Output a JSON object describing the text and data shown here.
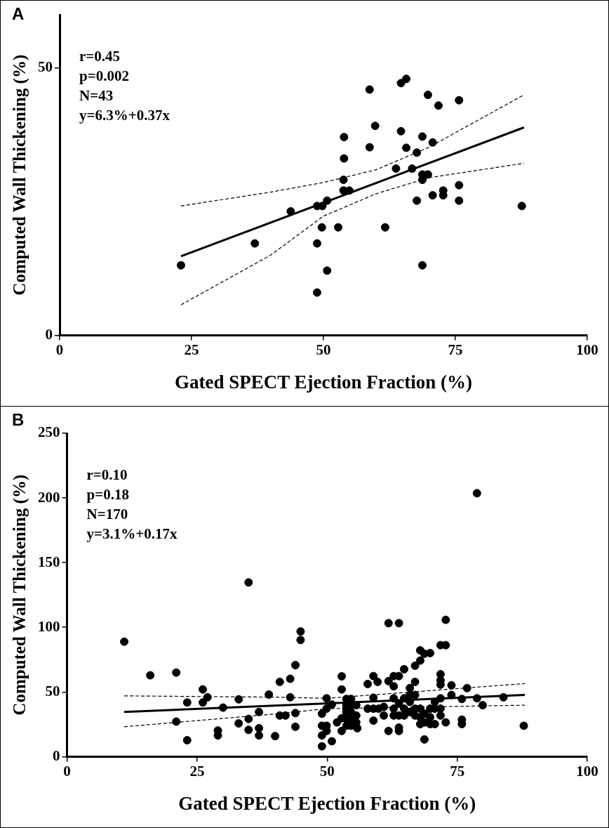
{
  "chart_data": [
    {
      "type": "scatter",
      "title": "A",
      "xlabel": "Gated SPECT Ejection Fraction (%)",
      "ylabel": "Computed Wall Thickening (%)",
      "annotations": [
        "r=0.45",
        "p=0.002",
        "N=43",
        "y=6.3%+0.37x"
      ],
      "xlim": [
        0,
        100
      ],
      "xticks": [
        0,
        25,
        50,
        75,
        100
      ],
      "ylim": [
        0,
        60
      ],
      "yticks": [
        0,
        50
      ],
      "grid": false,
      "legend": false,
      "series": [
        {
          "type": "scatter",
          "marker": "circle",
          "color": "#000000",
          "x": [
            23,
            37,
            43.8,
            48.8,
            49.8,
            50.7,
            48.8,
            49.7,
            50.7,
            48.8,
            52.8,
            53.8,
            53.9,
            53.9,
            53.8,
            54.9,
            58.75,
            58.75,
            59.8,
            61.7,
            63.75,
            64.7,
            65.7,
            64.7,
            65.7,
            66.8,
            67.7,
            67.7,
            68.75,
            68.75,
            69.8,
            68.75,
            68.75,
            69.8,
            70.7,
            70.7,
            71.8,
            72.7,
            72.7,
            75.7,
            75.7,
            75.7,
            87.6
          ],
          "values": [
            13.1,
            17.2,
            23.2,
            24.2,
            24.2,
            25.2,
            17.2,
            20.2,
            12.1,
            8,
            20.2,
            29.1,
            33.1,
            37.1,
            27.1,
            27.1,
            46,
            35.2,
            39.2,
            20.2,
            31.2,
            47.2,
            48,
            38.2,
            35.1,
            31.2,
            34.2,
            25.2,
            37.2,
            30.1,
            30.1,
            29.1,
            13.1,
            45,
            36.1,
            26.2,
            43,
            27.1,
            26.2,
            44,
            28.1,
            25.2,
            24.2
          ]
        },
        {
          "type": "line",
          "color": "#000000",
          "line_style": "solid",
          "x": [
            23,
            88
          ],
          "values": [
            14.8,
            38.9
          ]
        },
        {
          "type": "line",
          "color": "#000000",
          "line_style": "dashed",
          "x": [
            23,
            40,
            50,
            60,
            70,
            88
          ],
          "values": [
            24.2,
            26.8,
            28.6,
            31,
            35.2,
            45
          ]
        },
        {
          "type": "line",
          "color": "#000000",
          "line_style": "dashed",
          "x": [
            23,
            40,
            50,
            60,
            70,
            88
          ],
          "values": [
            5.7,
            15,
            22.3,
            26.5,
            29.5,
            32.2
          ]
        }
      ]
    },
    {
      "type": "scatter",
      "title": "B",
      "xlabel": "Gated SPECT Ejection Fraction (%)",
      "ylabel": "Computed Wall Thickening (%)",
      "annotations": [
        "r=0.10",
        "p=0.18",
        "N=170",
        "y=3.1%+0.17x"
      ],
      "xlim": [
        0,
        100
      ],
      "xticks": [
        0,
        25,
        50,
        75,
        100
      ],
      "ylim": [
        0,
        250
      ],
      "yticks": [
        0,
        50,
        100,
        150,
        200,
        250
      ],
      "grid": false,
      "legend": false,
      "series": [
        {
          "type": "scatter",
          "marker": "circle",
          "color": "#000000",
          "x": [
            78.8,
            34.9,
            11,
            44.9,
            44.9,
            61.8,
            63.8,
            72.8,
            71.8,
            72.8,
            67.9,
            68.7,
            69.8,
            66.9,
            64.8,
            67.9,
            16,
            21,
            43.9,
            40.9,
            42.9,
            52.8,
            52.8,
            57.8,
            58.9,
            59.7,
            61.8,
            62.8,
            63.8,
            62.8,
            66.9,
            65.9,
            71.8,
            71.8,
            71.8,
            73.9,
            76.9,
            26.1,
            23.1,
            26.1,
            27,
            30,
            33,
            38.8,
            42.9,
            43.9,
            40.9,
            42,
            36.9,
            34.9,
            33,
            21,
            23.1,
            29,
            29,
            34.9,
            36.9,
            36.9,
            40,
            43.9,
            49,
            50.9,
            49,
            49,
            49.9,
            49.9,
            49,
            49.9,
            49.9,
            50.9,
            51.9,
            52.8,
            52.8,
            53.7,
            54.6,
            53.7,
            54.6,
            53.7,
            54.6,
            53.7,
            54.6,
            53.7,
            54.6,
            55.6,
            55.8,
            53.7,
            55.6,
            55.6,
            57.8,
            58.9,
            58.9,
            59.9,
            60.9,
            60.9,
            58.9,
            61.8,
            63.8,
            63.8,
            62.8,
            62.8,
            62.8,
            63.8,
            63.8,
            64.8,
            64.8,
            64.8,
            65.9,
            65.9,
            65.9,
            66.9,
            66.9,
            67.9,
            67.9,
            68.7,
            68.7,
            69.8,
            69.8,
            69.8,
            70.7,
            70.7,
            70.7,
            71.8,
            71.8,
            71.8,
            72.8,
            73.9,
            75.9,
            75.9,
            75.9,
            78.8,
            79.9,
            83.9,
            87.8,
            68.7,
            67.9,
            66.9
          ],
          "values": [
            203.7,
            134.7,
            88.9,
            96.8,
            90.2,
            103.2,
            103.2,
            105.8,
            86.2,
            86.2,
            82.2,
            79.6,
            80.1,
            70.3,
            67.6,
            74.3,
            62.9,
            65,
            70.8,
            57.8,
            60.2,
            62.1,
            52,
            56.2,
            62.3,
            57.8,
            58.4,
            62.3,
            62.3,
            54.4,
            57.8,
            53,
            63.7,
            59,
            55.7,
            55.2,
            53,
            52,
            41.9,
            41.9,
            45.9,
            37.9,
            44.3,
            48,
            45.9,
            33.7,
            31.8,
            31.8,
            34.5,
            29.2,
            25.7,
            27.1,
            12.7,
            20.2,
            16.4,
            20.7,
            22,
            16.4,
            15.9,
            23.1,
            8,
            11.9,
            16.4,
            23.9,
            19.9,
            23.9,
            33.2,
            37.1,
            45.1,
            40.3,
            26.5,
            19.9,
            29.7,
            44.6,
            44.6,
            39.8,
            39.8,
            34.5,
            34.5,
            29.2,
            29.2,
            23.9,
            23.9,
            26.5,
            22,
            37.1,
            31.8,
            39.8,
            37.1,
            45.6,
            37.1,
            37.1,
            38.5,
            31.8,
            27.9,
            19.9,
            19.9,
            22.5,
            45.1,
            37.1,
            31.8,
            41.1,
            31.8,
            45.1,
            37.1,
            31.8,
            47.7,
            42.4,
            34.5,
            37.1,
            31.8,
            37.1,
            30.5,
            33.2,
            26.5,
            37.1,
            30.5,
            25.2,
            42.4,
            37.1,
            25.2,
            45.1,
            37.1,
            31.8,
            26.5,
            47.7,
            44.6,
            28.6,
            25.2,
            45.1,
            39.8,
            45.9,
            23.9,
            13.3,
            25.2,
            47.7
          ]
        },
        {
          "type": "line",
          "color": "#000000",
          "line_style": "solid",
          "x": [
            11,
            88
          ],
          "values": [
            34.5,
            47.7
          ]
        },
        {
          "type": "line",
          "color": "#000000",
          "line_style": "dashed",
          "x": [
            11,
            40,
            50,
            88
          ],
          "values": [
            47,
            46,
            45.1,
            56.5
          ]
        },
        {
          "type": "line",
          "color": "#000000",
          "line_style": "dashed",
          "x": [
            11,
            40,
            50,
            88
          ],
          "values": [
            23.1,
            33,
            37.1,
            39.8
          ]
        }
      ]
    }
  ]
}
